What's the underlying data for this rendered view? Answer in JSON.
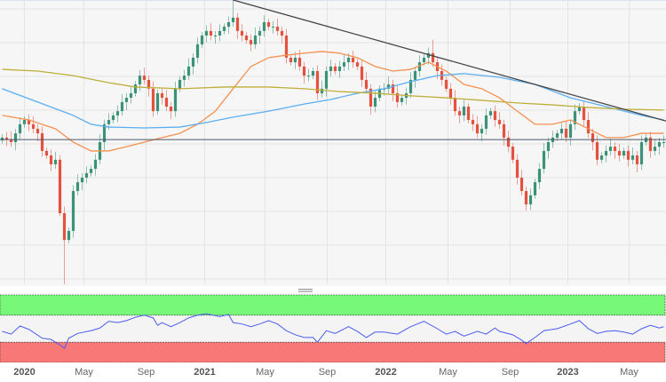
{
  "chart_data": {
    "type": "candlestick",
    "title": "",
    "xlabel": "",
    "ylabel": "",
    "x_unit": "week index",
    "ylim": [
      0,
      100
    ],
    "grid": true,
    "colors": {
      "up": "#3b9278",
      "down": "#e4523f",
      "sma_fast": "#f4914f",
      "sma_mid": "#5aaef0",
      "sma_slow": "#bfae3a",
      "trendline": "#444444",
      "hline": "#4a5568",
      "rsi": "#4a5cf0",
      "overbought": "#78f878",
      "oversold": "#f87878"
    },
    "x_ticks": [
      {
        "week": 5,
        "label": "2020",
        "year": true
      },
      {
        "week": 18.4,
        "label": "May"
      },
      {
        "week": 32.4,
        "label": "Sep"
      },
      {
        "week": 45.6,
        "label": "2021",
        "year": true
      },
      {
        "week": 59.2,
        "label": "May"
      },
      {
        "week": 73.2,
        "label": "Sep"
      },
      {
        "week": 86.4,
        "label": "2022",
        "year": true
      },
      {
        "week": 100.4,
        "label": "May"
      },
      {
        "week": 114.4,
        "label": "Sep"
      },
      {
        "week": 127.4,
        "label": "2023",
        "year": true
      },
      {
        "week": 141.2,
        "label": "May"
      }
    ],
    "closes": [
      51.6,
      51,
      50,
      53.1,
      56.3,
      57.8,
      56.3,
      54.7,
      53.1,
      46.9,
      45.3,
      42.2,
      43.8,
      25,
      15.6,
      18.8,
      32.8,
      35.9,
      37.5,
      39.1,
      40.6,
      43.8,
      50,
      56.3,
      57.8,
      59.4,
      60.9,
      64.1,
      65.6,
      67.2,
      70.3,
      73.4,
      71.9,
      68.8,
      60.9,
      67.2,
      65.6,
      62.5,
      60.9,
      68.8,
      71.9,
      73.4,
      76.6,
      79.7,
      84.4,
      87.5,
      89.1,
      87.5,
      87.5,
      89.1,
      90.6,
      92.2,
      93.8,
      89.1,
      87.5,
      85.9,
      84.4,
      87.5,
      89.1,
      92.2,
      90.6,
      90.6,
      89.1,
      87.5,
      79.7,
      78.1,
      79.7,
      76.6,
      73.4,
      73.4,
      75,
      67.2,
      68.8,
      75,
      76.6,
      75,
      76.6,
      78.1,
      79.7,
      78.1,
      76.6,
      71.9,
      68.8,
      62.5,
      65.6,
      68.8,
      68.8,
      70.3,
      67.2,
      64.1,
      65.6,
      67.2,
      71.9,
      75,
      78.1,
      79.7,
      81.3,
      78.1,
      75,
      71.9,
      68.8,
      65.6,
      60.9,
      59.4,
      62.5,
      57.8,
      56.3,
      53.1,
      54.7,
      59.4,
      60.9,
      57.8,
      56.3,
      51.6,
      48.4,
      43.8,
      37.5,
      32.8,
      28.1,
      31.3,
      35.9,
      40.6,
      46.9,
      50,
      51.6,
      53.1,
      54.7,
      51.6,
      56.3,
      60.9,
      62.5,
      57.8,
      53.1,
      50,
      43.8,
      45.3,
      46.9,
      48.4,
      46.9,
      45.3,
      46.9,
      43.8,
      45.3,
      42.2,
      50,
      51.6,
      46.9,
      48.4,
      50,
      50
    ],
    "wick_overrides": [
      {
        "week": 14,
        "low": 0
      },
      {
        "week": 13,
        "low": 24
      },
      {
        "week": 52,
        "high": 100
      },
      {
        "week": 97,
        "high": 86
      },
      {
        "week": 118,
        "low": 26
      }
    ],
    "series": [
      {
        "name": "SMA fast",
        "color_key": "sma_fast",
        "points": [
          [
            0,
            59.4
          ],
          [
            6,
            57.8
          ],
          [
            12,
            54.7
          ],
          [
            16,
            50
          ],
          [
            20,
            46.9
          ],
          [
            24,
            46.9
          ],
          [
            28,
            48.4
          ],
          [
            32,
            50
          ],
          [
            36,
            51.6
          ],
          [
            40,
            53.1
          ],
          [
            44,
            56.3
          ],
          [
            48,
            60.9
          ],
          [
            52,
            68.8
          ],
          [
            56,
            76.6
          ],
          [
            60,
            79.7
          ],
          [
            64,
            80.6
          ],
          [
            68,
            81.3
          ],
          [
            72,
            81.9
          ],
          [
            76,
            81.3
          ],
          [
            80,
            79.7
          ],
          [
            84,
            76.6
          ],
          [
            88,
            75
          ],
          [
            92,
            75.6
          ],
          [
            96,
            78.1
          ],
          [
            100,
            75
          ],
          [
            104,
            70.3
          ],
          [
            108,
            68.8
          ],
          [
            112,
            65.6
          ],
          [
            116,
            60.9
          ],
          [
            120,
            56.3
          ],
          [
            124,
            56.3
          ],
          [
            128,
            57.8
          ],
          [
            132,
            54.7
          ],
          [
            136,
            51.6
          ],
          [
            140,
            51.6
          ],
          [
            144,
            53.1
          ],
          [
            149,
            53.1
          ]
        ]
      },
      {
        "name": "SMA mid",
        "color_key": "sma_mid",
        "points": [
          [
            0,
            68.8
          ],
          [
            8,
            64.1
          ],
          [
            16,
            59.4
          ],
          [
            20,
            56.3
          ],
          [
            24,
            55.3
          ],
          [
            32,
            55
          ],
          [
            40,
            55.3
          ],
          [
            46,
            56.9
          ],
          [
            52,
            58.8
          ],
          [
            60,
            60.9
          ],
          [
            68,
            63.4
          ],
          [
            74,
            65
          ],
          [
            80,
            67.2
          ],
          [
            86,
            68.8
          ],
          [
            92,
            71.3
          ],
          [
            98,
            73.4
          ],
          [
            104,
            74.1
          ],
          [
            112,
            72.8
          ],
          [
            120,
            70.3
          ],
          [
            128,
            65.6
          ],
          [
            136,
            62.5
          ],
          [
            144,
            59.4
          ],
          [
            149,
            57.8
          ]
        ]
      },
      {
        "name": "SMA slow",
        "color_key": "sma_slow",
        "points": [
          [
            0,
            75.6
          ],
          [
            8,
            75
          ],
          [
            16,
            73.4
          ],
          [
            24,
            70.9
          ],
          [
            30,
            69.4
          ],
          [
            40,
            68.8
          ],
          [
            50,
            69.4
          ],
          [
            60,
            69.4
          ],
          [
            68,
            68.8
          ],
          [
            76,
            67.8
          ],
          [
            84,
            67.2
          ],
          [
            92,
            66.3
          ],
          [
            100,
            65.6
          ],
          [
            108,
            64.7
          ],
          [
            116,
            63.8
          ],
          [
            124,
            63.1
          ],
          [
            132,
            62.2
          ],
          [
            140,
            61.6
          ],
          [
            149,
            61.3
          ]
        ]
      }
    ],
    "trendline": {
      "from": [
        52,
        100
      ],
      "to": [
        150,
        57.2
      ]
    },
    "horizontal_level": 50.9,
    "rsi": {
      "ylim": [
        0,
        100
      ],
      "overbought": 70,
      "oversold": 30,
      "points": [
        [
          0,
          46
        ],
        [
          2,
          42
        ],
        [
          4,
          54
        ],
        [
          6,
          49
        ],
        [
          9,
          36
        ],
        [
          11,
          34
        ],
        [
          13,
          26
        ],
        [
          14,
          21
        ],
        [
          15,
          36
        ],
        [
          17,
          43
        ],
        [
          20,
          47
        ],
        [
          22,
          51
        ],
        [
          24,
          61
        ],
        [
          26,
          59
        ],
        [
          28,
          62
        ],
        [
          30,
          67
        ],
        [
          32,
          70
        ],
        [
          34,
          66
        ],
        [
          35,
          55
        ],
        [
          36,
          59
        ],
        [
          38,
          53
        ],
        [
          40,
          59
        ],
        [
          42,
          66
        ],
        [
          44,
          70
        ],
        [
          46,
          72
        ],
        [
          49,
          68
        ],
        [
          51,
          71
        ],
        [
          52,
          59
        ],
        [
          54,
          57
        ],
        [
          56,
          53
        ],
        [
          58,
          57
        ],
        [
          60,
          62
        ],
        [
          62,
          57
        ],
        [
          64,
          47
        ],
        [
          66,
          41
        ],
        [
          68,
          37
        ],
        [
          70,
          37
        ],
        [
          71,
          30
        ],
        [
          73,
          47
        ],
        [
          75,
          43
        ],
        [
          78,
          53
        ],
        [
          80,
          46
        ],
        [
          82,
          37
        ],
        [
          84,
          45
        ],
        [
          86,
          45
        ],
        [
          89,
          42
        ],
        [
          92,
          53
        ],
        [
          95,
          61
        ],
        [
          98,
          50
        ],
        [
          100,
          42
        ],
        [
          102,
          46
        ],
        [
          104,
          39
        ],
        [
          107,
          46
        ],
        [
          109,
          42
        ],
        [
          111,
          51
        ],
        [
          112,
          46
        ],
        [
          115,
          41
        ],
        [
          117,
          33
        ],
        [
          118,
          28
        ],
        [
          120,
          37
        ],
        [
          122,
          47
        ],
        [
          125,
          50
        ],
        [
          128,
          57
        ],
        [
          130,
          62
        ],
        [
          132,
          50
        ],
        [
          134,
          43
        ],
        [
          136,
          46
        ],
        [
          138,
          47
        ],
        [
          140,
          45
        ],
        [
          142,
          42
        ],
        [
          144,
          50
        ],
        [
          146,
          55
        ],
        [
          148,
          51
        ],
        [
          149,
          53
        ]
      ]
    }
  }
}
